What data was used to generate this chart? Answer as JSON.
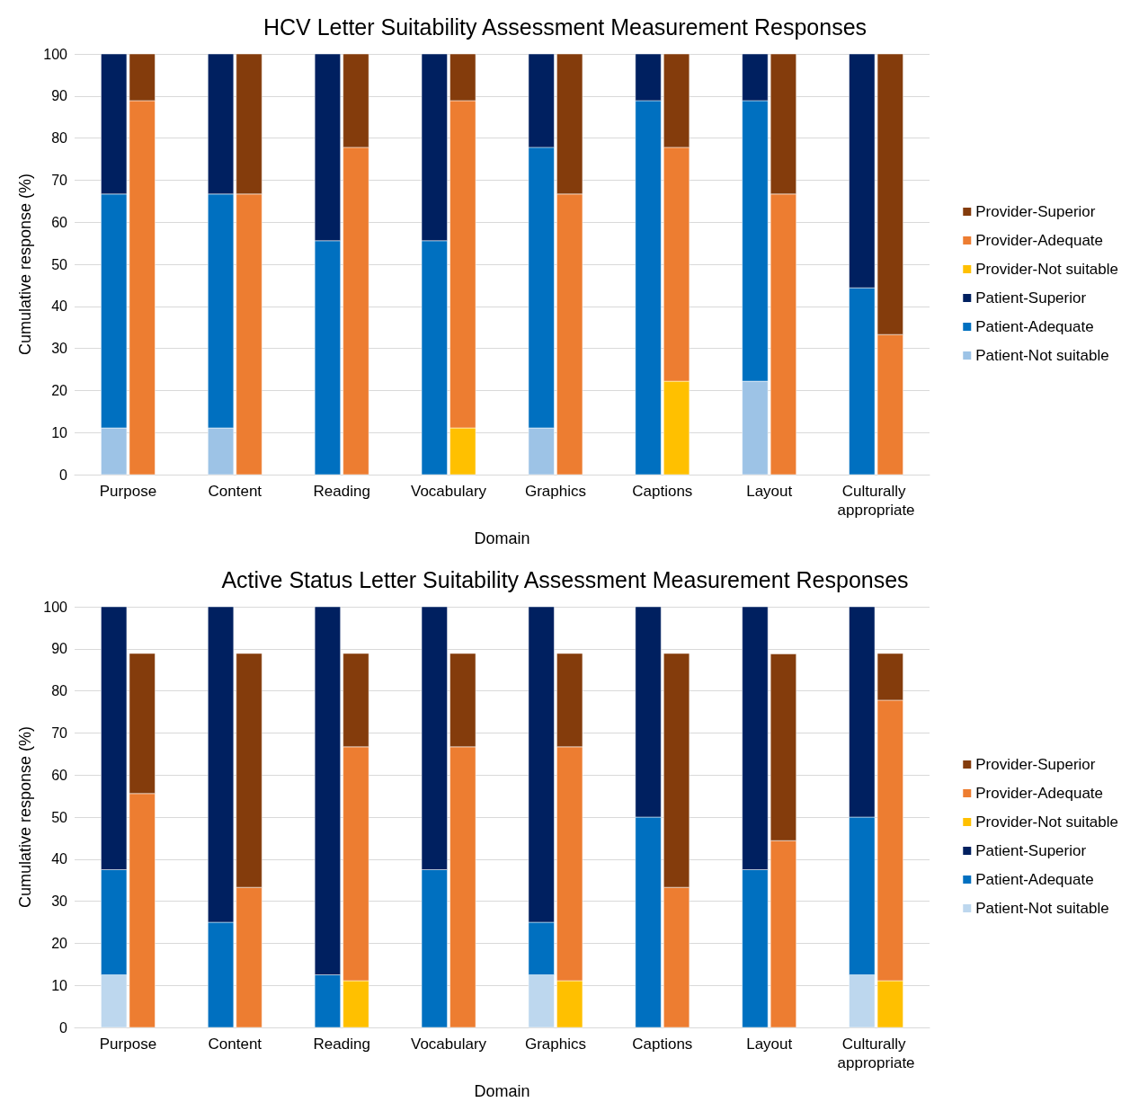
{
  "chart_data": [
    {
      "type": "bar",
      "title": "HCV Letter Suitability Assessment Measurement Responses",
      "xlabel": "Domain",
      "ylabel": "Cumulative response (%)",
      "categories": [
        "Purpose",
        "Content",
        "Reading",
        "Vocabulary",
        "Graphics",
        "Captions",
        "Layout",
        "Culturally appropriate"
      ],
      "ylim": [
        0,
        100
      ],
      "yticks": [
        0,
        10,
        20,
        30,
        40,
        50,
        60,
        70,
        80,
        90,
        100
      ],
      "grid": "y",
      "legend": "right",
      "series": [
        {
          "name": "Patient-Not suitable",
          "color": "#9dc3e6",
          "base": [
            0,
            0,
            null,
            null,
            0,
            null,
            0,
            null
          ],
          "values": [
            11.1,
            11.1,
            0,
            0,
            11.1,
            0,
            22.2,
            0
          ]
        },
        {
          "name": "Patient-Adequate",
          "color": "#0070c0",
          "base": [
            11.1,
            11.1,
            0,
            0,
            11.1,
            0,
            22.2,
            0
          ],
          "values": [
            55.6,
            55.6,
            55.6,
            55.6,
            66.7,
            88.9,
            66.7,
            44.4
          ]
        },
        {
          "name": "Patient-Superior",
          "color": "#002060",
          "base": [
            66.7,
            66.7,
            55.6,
            55.6,
            77.8,
            88.9,
            88.9,
            44.4
          ],
          "values": [
            33.3,
            33.3,
            44.4,
            44.4,
            22.2,
            11.1,
            11.1,
            55.6
          ]
        },
        {
          "name": "Provider-Not suitable",
          "color": "#ffc000",
          "base": [
            null,
            null,
            null,
            0,
            null,
            0,
            null,
            null
          ],
          "values": [
            0,
            0,
            0,
            11.1,
            0,
            22.2,
            0,
            0
          ]
        },
        {
          "name": "Provider-Adequate",
          "color": "#ed7d31",
          "base": [
            0,
            0,
            0,
            11.1,
            0,
            22.2,
            0,
            0
          ],
          "values": [
            88.9,
            66.7,
            77.8,
            77.8,
            66.7,
            55.6,
            66.7,
            33.3
          ]
        },
        {
          "name": "Provider-Superior",
          "color": "#843c0c",
          "base": [
            88.9,
            66.7,
            77.8,
            88.9,
            66.7,
            77.8,
            66.7,
            33.3
          ],
          "values": [
            11.1,
            33.3,
            22.2,
            11.1,
            33.3,
            22.2,
            33.3,
            66.7
          ]
        }
      ]
    },
    {
      "type": "bar",
      "title": "Active Status Letter Suitability Assessment Measurement Responses",
      "xlabel": "Domain",
      "ylabel": "Cumulative response (%)",
      "categories": [
        "Purpose",
        "Content",
        "Reading",
        "Vocabulary",
        "Graphics",
        "Captions",
        "Layout",
        "Culturally appropriate"
      ],
      "ylim": [
        0,
        100
      ],
      "yticks": [
        0,
        10,
        20,
        30,
        40,
        50,
        60,
        70,
        80,
        90,
        100
      ],
      "grid": "y",
      "legend": "right",
      "series": [
        {
          "name": "Patient-Not suitable",
          "color": "#bdd7ee",
          "base": [
            0,
            null,
            null,
            null,
            0,
            null,
            null,
            0
          ],
          "values": [
            12.5,
            0,
            0,
            0,
            12.5,
            0,
            0,
            12.5
          ]
        },
        {
          "name": "Patient-Adequate",
          "color": "#0070c0",
          "base": [
            12.5,
            0,
            0,
            0,
            12.5,
            0,
            0,
            12.5
          ],
          "values": [
            25,
            25,
            12.5,
            37.5,
            12.5,
            50,
            37.5,
            37.5
          ]
        },
        {
          "name": "Patient-Superior",
          "color": "#002060",
          "base": [
            37.5,
            25,
            12.5,
            37.5,
            25,
            50,
            37.5,
            50
          ],
          "values": [
            62.5,
            75,
            87.5,
            62.5,
            75,
            50,
            62.5,
            50
          ]
        },
        {
          "name": "Provider-Not suitable",
          "color": "#ffc000",
          "base": [
            null,
            null,
            0,
            null,
            0,
            null,
            null,
            0
          ],
          "values": [
            0,
            0,
            11.1,
            0,
            11.1,
            0,
            0,
            11.1
          ]
        },
        {
          "name": "Provider-Adequate",
          "color": "#ed7d31",
          "base": [
            0,
            0,
            11.1,
            0,
            11.1,
            0,
            0,
            11.1
          ],
          "values": [
            55.6,
            33.3,
            55.6,
            66.7,
            55.6,
            33.3,
            44.4,
            66.7
          ]
        },
        {
          "name": "Provider-Superior",
          "color": "#843c0c",
          "base": [
            55.6,
            33.3,
            66.7,
            66.7,
            66.7,
            33.3,
            44.4,
            77.8
          ],
          "values": [
            33.3,
            55.6,
            22.2,
            22.2,
            22.2,
            55.6,
            44.4,
            11.1
          ]
        }
      ]
    }
  ]
}
